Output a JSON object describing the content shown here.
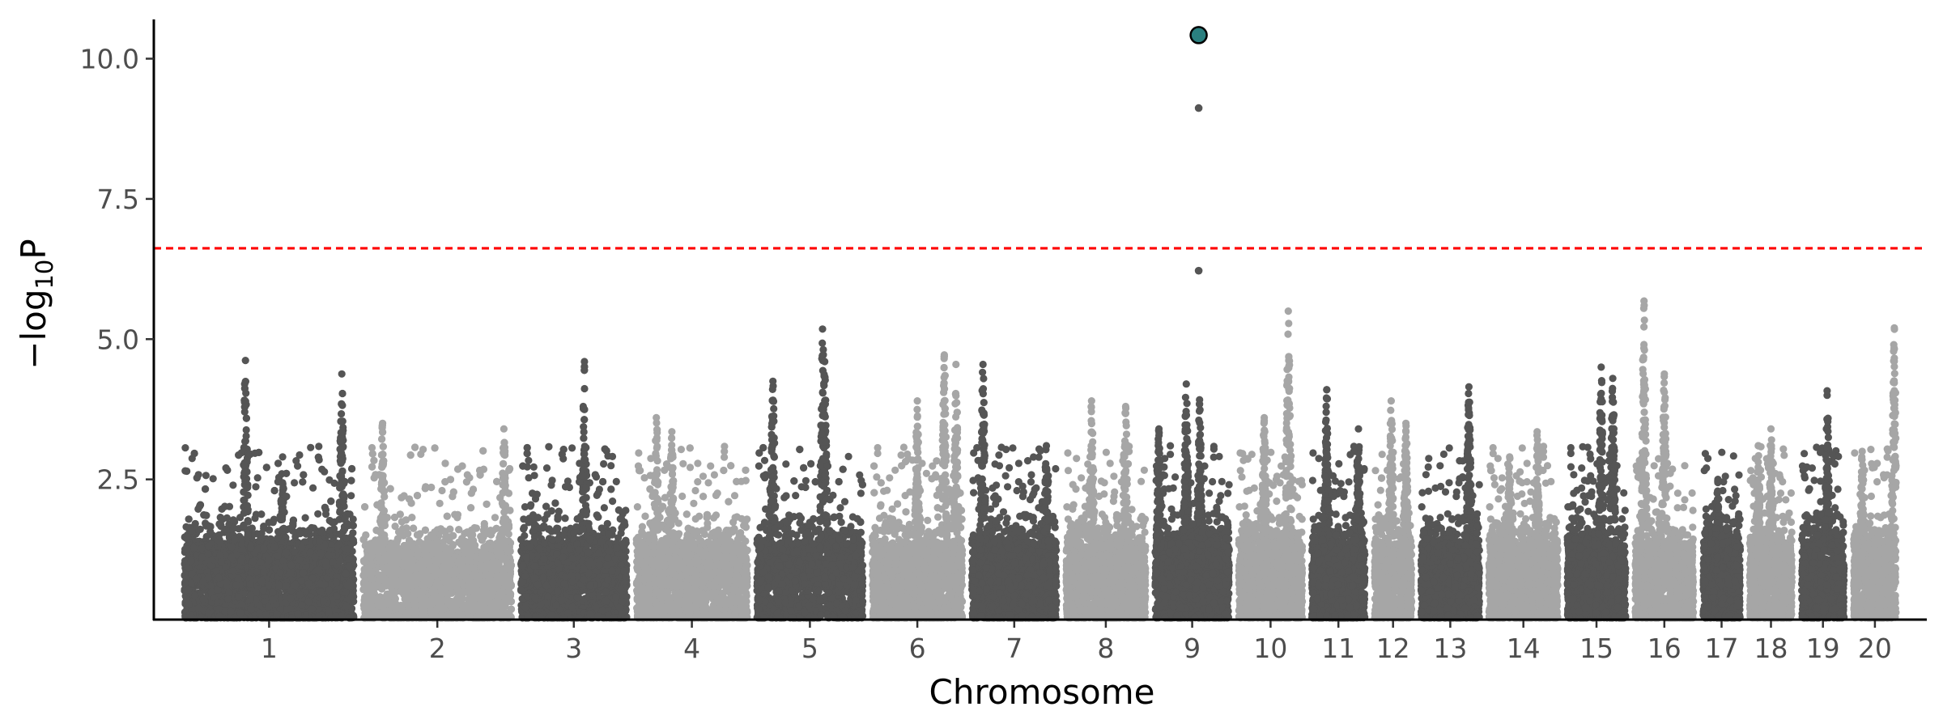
{
  "chart_data": {
    "type": "scatter",
    "subtype": "manhattan",
    "title": "",
    "xlabel": "Chromosome",
    "ylabel_prefix": "−log",
    "ylabel_subscript": "10",
    "ylabel_suffix": "P",
    "ylim": [
      0,
      10.7
    ],
    "yticks": [
      2.5,
      5.0,
      7.5,
      10.0
    ],
    "ytick_labels": [
      "2.5",
      "5.0",
      "7.5",
      "10.0"
    ],
    "threshold": {
      "value": 6.62,
      "color": "#ff0000",
      "style": "dashed"
    },
    "colors": {
      "odd": "#555555",
      "even": "#a6a6a6",
      "highlight": "#2a7f7f"
    },
    "legend": "none",
    "grid": false,
    "chromosomes": [
      {
        "label": "1",
        "length": 160,
        "peaks": [
          {
            "pos": 0.36,
            "h": 4.62
          },
          {
            "pos": 0.93,
            "h": 4.38
          },
          {
            "pos": 0.58,
            "h": 2.9
          }
        ]
      },
      {
        "label": "2",
        "length": 140,
        "peaks": [
          {
            "pos": 0.13,
            "h": 3.5
          },
          {
            "pos": 0.95,
            "h": 3.4
          }
        ]
      },
      {
        "label": "3",
        "length": 100,
        "peaks": [
          {
            "pos": 0.6,
            "h": 4.6
          }
        ]
      },
      {
        "label": "4",
        "length": 105,
        "peaks": [
          {
            "pos": 0.18,
            "h": 3.6
          },
          {
            "pos": 0.32,
            "h": 3.35
          }
        ]
      },
      {
        "label": "5",
        "length": 100,
        "peaks": [
          {
            "pos": 0.15,
            "h": 4.25
          },
          {
            "pos": 0.64,
            "h": 4.6
          },
          {
            "pos": 0.62,
            "h": 5.18
          }
        ]
      },
      {
        "label": "6",
        "length": 85,
        "peaks": [
          {
            "pos": 0.5,
            "h": 3.9
          },
          {
            "pos": 0.93,
            "h": 4.55
          },
          {
            "pos": 0.8,
            "h": 4.72
          }
        ]
      },
      {
        "label": "7",
        "length": 80,
        "peaks": [
          {
            "pos": 0.13,
            "h": 4.55
          },
          {
            "pos": 0.88,
            "h": 3.1
          }
        ]
      },
      {
        "label": "8",
        "length": 75,
        "peaks": [
          {
            "pos": 0.32,
            "h": 3.9
          },
          {
            "pos": 0.75,
            "h": 3.8
          }
        ]
      },
      {
        "label": "9",
        "length": 70,
        "peaks": [
          {
            "pos": 0.05,
            "h": 3.4
          },
          {
            "pos": 0.6,
            "h": 3.92
          },
          {
            "pos": 0.42,
            "h": 4.2
          }
        ],
        "hits": [
          6.22,
          9.12
        ],
        "lead": 10.42
      },
      {
        "label": "10",
        "length": 60,
        "peaks": [
          {
            "pos": 0.78,
            "h": 5.5
          },
          {
            "pos": 0.4,
            "h": 3.6
          }
        ]
      },
      {
        "label": "11",
        "length": 50,
        "peaks": [
          {
            "pos": 0.28,
            "h": 4.1
          },
          {
            "pos": 0.88,
            "h": 3.4
          }
        ]
      },
      {
        "label": "12",
        "length": 35,
        "peaks": [
          {
            "pos": 0.45,
            "h": 3.9
          },
          {
            "pos": 0.85,
            "h": 3.5
          }
        ]
      },
      {
        "label": "13",
        "length": 55,
        "peaks": [
          {
            "pos": 0.82,
            "h": 4.15
          }
        ]
      },
      {
        "label": "14",
        "length": 65,
        "peaks": [
          {
            "pos": 0.7,
            "h": 3.35
          },
          {
            "pos": 0.3,
            "h": 2.9
          }
        ]
      },
      {
        "label": "15",
        "length": 55,
        "peaks": [
          {
            "pos": 0.58,
            "h": 4.5
          },
          {
            "pos": 0.78,
            "h": 4.3
          }
        ]
      },
      {
        "label": "16",
        "length": 55,
        "peaks": [
          {
            "pos": 0.15,
            "h": 5.68
          },
          {
            "pos": 0.5,
            "h": 4.38
          }
        ]
      },
      {
        "label": "17",
        "length": 35,
        "peaks": [
          {
            "pos": 0.4,
            "h": 2.5
          }
        ]
      },
      {
        "label": "18",
        "length": 40,
        "peaks": [
          {
            "pos": 0.5,
            "h": 3.4
          },
          {
            "pos": 0.2,
            "h": 3.1
          }
        ]
      },
      {
        "label": "19",
        "length": 40,
        "peaks": [
          {
            "pos": 0.6,
            "h": 4.08
          }
        ]
      },
      {
        "label": "20",
        "length": 40,
        "peaks": [
          {
            "pos": 0.96,
            "h": 5.2
          },
          {
            "pos": 0.2,
            "h": 3.0
          }
        ]
      }
    ]
  }
}
